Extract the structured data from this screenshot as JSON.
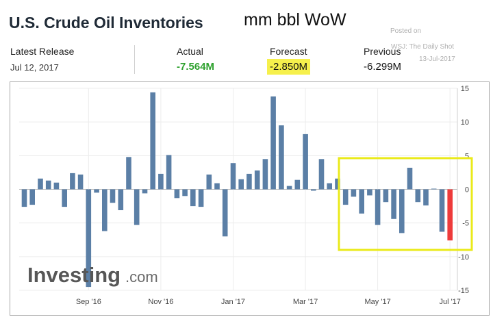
{
  "header": {
    "title": "U.S. Crude Oil Inventories",
    "subtitle": "mm bbl WoW",
    "posted_on": "Posted on",
    "posted_by": "WSJ: The Daily Shot",
    "posted_date": "13-Jul-2017"
  },
  "stats": {
    "latest_label": "Latest Release",
    "latest_date": "Jul 12, 2017",
    "actual_label": "Actual",
    "actual_value": "-7.564M",
    "forecast_label": "Forecast",
    "forecast_value": "-2.850M",
    "previous_label": "Previous",
    "previous_value": "-6.299M"
  },
  "colors": {
    "bar": "#5b7fa6",
    "latest_bar": "#ee3b3b",
    "actual": "#2ea12e",
    "highlight": "#f6f04c"
  },
  "watermark": {
    "brand": "Investing",
    "suffix": ".com"
  },
  "chart_data": {
    "type": "bar",
    "ylim": [
      -15,
      15
    ],
    "y_ticks": [
      15,
      10,
      5,
      0,
      -5,
      -10,
      -15
    ],
    "y_tick_labels": [
      "15",
      "10",
      "5",
      "0",
      "-5",
      "-10",
      "-15"
    ],
    "x_tick_labels": [
      {
        "label": "Sep '16",
        "index": 8
      },
      {
        "label": "Nov '16",
        "index": 17
      },
      {
        "label": "Jan '17",
        "index": 26
      },
      {
        "label": "Mar '17",
        "index": 35
      },
      {
        "label": "May '17",
        "index": 44
      },
      {
        "label": "Jul '17",
        "index": 53
      }
    ],
    "values": [
      -2.6,
      -2.3,
      1.6,
      1.3,
      1.0,
      -2.6,
      2.4,
      2.2,
      -14.5,
      -0.5,
      -6.2,
      -2.0,
      -3.1,
      4.8,
      -5.3,
      -0.6,
      14.4,
      2.3,
      5.1,
      -1.3,
      -1.0,
      -2.5,
      -2.6,
      2.2,
      0.9,
      -7.0,
      3.9,
      1.5,
      2.3,
      2.8,
      4.5,
      13.8,
      9.5,
      0.5,
      1.4,
      8.2,
      -0.2,
      4.5,
      0.9,
      1.6,
      -2.3,
      -1.1,
      -3.6,
      -0.9,
      -5.3,
      -1.9,
      -4.4,
      -6.5,
      3.2,
      -1.9,
      -2.4,
      0.1,
      -6.3,
      -7.6
    ],
    "highlight_index": 53
  }
}
